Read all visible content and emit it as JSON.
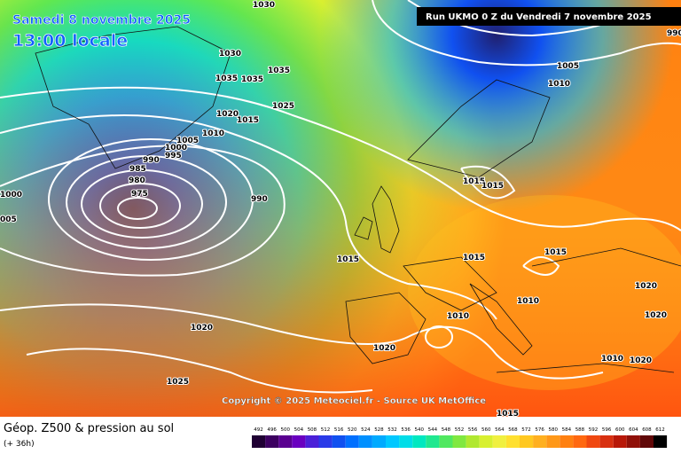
{
  "header": {
    "date": "Samedi 8 novembre 2025",
    "time": "13:00 locale",
    "run": "Run UKMO 0 Z du Vendredi 7 novembre 2025"
  },
  "isobar_labels": [
    "1030",
    "1035",
    "1035",
    "1035",
    "1025",
    "1020",
    "1015",
    "1010",
    "1005",
    "1000",
    "995",
    "990",
    "985",
    "980",
    "975",
    "990",
    "1000",
    "005",
    "1015",
    "1020",
    "1025",
    "1020",
    "1010",
    "1010",
    "1015",
    "1015",
    "1015",
    "1015",
    "1020",
    "1020",
    "1020",
    "1010",
    "1015",
    "1005",
    "1010",
    "990",
    "1030"
  ],
  "copyright": "Copyright © 2025 Meteociel.fr - Source UK MetOffice",
  "legend": {
    "title": "Géop. Z500 & pression au sol",
    "lead": "(+ 36h)",
    "values": [
      492,
      496,
      500,
      504,
      508,
      512,
      516,
      520,
      524,
      528,
      532,
      536,
      540,
      544,
      548,
      552,
      556,
      560,
      564,
      568,
      572,
      576,
      580,
      584,
      588,
      592,
      596,
      600,
      604,
      608,
      612
    ],
    "colors": [
      "#1f0033",
      "#3c0060",
      "#5a0090",
      "#6a00c0",
      "#4b20d8",
      "#2a3ae8",
      "#1050f0",
      "#0070ff",
      "#0090ff",
      "#00aaff",
      "#00c8ff",
      "#00dde8",
      "#00e8c0",
      "#20e890",
      "#50e860",
      "#80e840",
      "#b0e830",
      "#d8f030",
      "#f0f040",
      "#ffe030",
      "#ffc820",
      "#ffb020",
      "#ff9818",
      "#ff8010",
      "#ff6810",
      "#f04810",
      "#d83010",
      "#b81808",
      "#901008",
      "#600808",
      "#000000"
    ]
  }
}
